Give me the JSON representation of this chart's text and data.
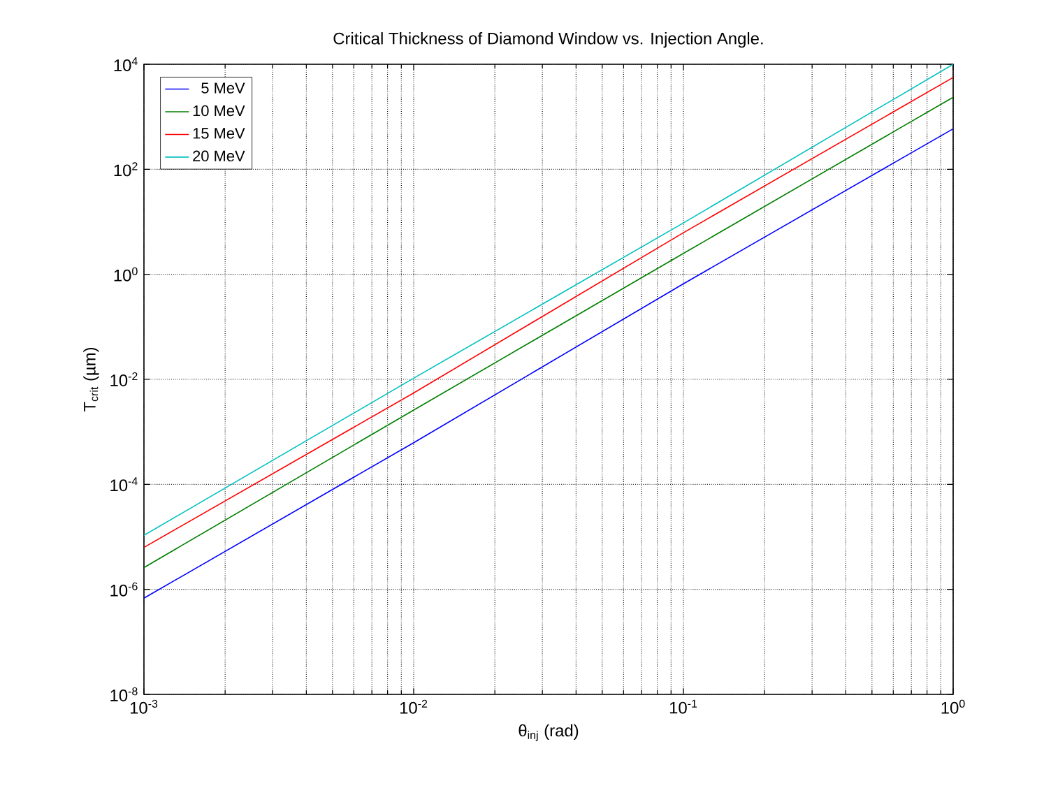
{
  "chart_data": {
    "type": "line",
    "title": "Critical Thickness of Diamond Window vs. Injection Angle.",
    "xlabel": "θ$_{inj}$ (rad)",
    "ylabel": "T$_{crit}$ (µm)",
    "log": "xy",
    "grid": true,
    "legend": "top left",
    "line_style": "solid",
    "marker": "none",
    "xlim": [
      0.001,
      1
    ],
    "ylim": [
      1e-08,
      10000
    ],
    "xticks": [
      {
        "value": 0.001,
        "label": "10$^{-3}$"
      },
      {
        "value": 0.01,
        "label": "10$^{-2}$"
      },
      {
        "value": 0.1,
        "label": "10$^{-1}$"
      },
      {
        "value": 1,
        "label": "10$^{0}$"
      }
    ],
    "yticks": [
      {
        "value": 1e-08,
        "label": "10$^{-8}$"
      },
      {
        "value": 1e-06,
        "label": "10$^{-6}$"
      },
      {
        "value": 0.0001,
        "label": "10$^{-4}$"
      },
      {
        "value": 0.01,
        "label": "10$^{-2}$"
      },
      {
        "value": 1,
        "label": "10$^{0}$"
      },
      {
        "value": 100,
        "label": "10$^{2}$"
      },
      {
        "value": 10000,
        "label": "10$^{4}$"
      }
    ],
    "x": [
      0.001,
      0.01,
      0.1,
      1
    ],
    "series": [
      {
        "name": "5 MeV",
        "color": "#0000ff",
        "values": [
          6.8e-07,
          0.00062,
          0.66,
          590
        ]
      },
      {
        "name": "10 MeV",
        "color": "#008000",
        "values": [
          2.6e-06,
          0.0026,
          2.5,
          2350
        ]
      },
      {
        "name": "15 MeV",
        "color": "#ff0000",
        "values": [
          6.3e-06,
          0.0055,
          6.2,
          5600
        ]
      },
      {
        "name": "20 MeV",
        "color": "#00bfbf",
        "values": [
          1.07e-05,
          0.0105,
          9.5,
          10000
        ]
      }
    ]
  }
}
